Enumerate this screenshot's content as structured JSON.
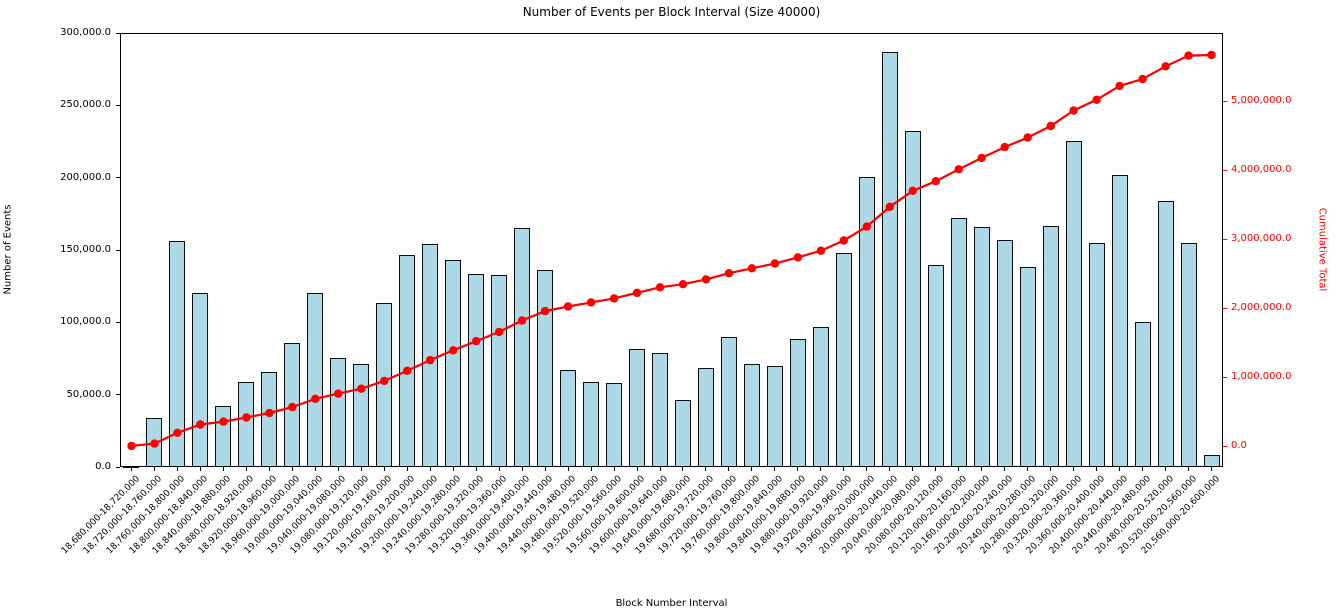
{
  "figure": {
    "title": "Number of Events per Block Interval (Size 40000)",
    "xlabel": "Block Number Interval",
    "ylabel_left": "Number of Events",
    "ylabel_right": "Cumulative Total"
  },
  "chart_data": {
    "type": "bar",
    "title": "Number of Events per Block Interval (Size 40000)",
    "xlabel": "Block Number Interval",
    "ylabel": "Number of Events",
    "ylabel_right": "Cumulative Total",
    "grid": false,
    "legend_position": "none",
    "bar_color": "#add8e6",
    "bar_edge_color": "#0d0d0d",
    "line_color": "#ff0000",
    "categories": [
      "18,680,000-18,720,000",
      "18,720,000-18,760,000",
      "18,760,000-18,800,000",
      "18,800,000-18,840,000",
      "18,840,000-18,880,000",
      "18,880,000-18,920,000",
      "18,920,000-18,960,000",
      "18,960,000-19,000,000",
      "19,000,000-19,040,000",
      "19,040,000-19,080,000",
      "19,080,000-19,120,000",
      "19,120,000-19,160,000",
      "19,160,000-19,200,000",
      "19,200,000-19,240,000",
      "19,240,000-19,280,000",
      "19,280,000-19,320,000",
      "19,320,000-19,360,000",
      "19,360,000-19,400,000",
      "19,400,000-19,440,000",
      "19,440,000-19,480,000",
      "19,480,000-19,520,000",
      "19,520,000-19,560,000",
      "19,560,000-19,600,000",
      "19,600,000-19,640,000",
      "19,640,000-19,680,000",
      "19,680,000-19,720,000",
      "19,720,000-19,760,000",
      "19,760,000-19,800,000",
      "19,800,000-19,840,000",
      "19,840,000-19,880,000",
      "19,880,000-19,920,000",
      "19,920,000-19,960,000",
      "19,960,000-20,000,000",
      "20,000,000-20,040,000",
      "20,040,000-20,080,000",
      "20,080,000-20,120,000",
      "20,120,000-20,160,000",
      "20,160,000-20,200,000",
      "20,200,000-20,240,000",
      "20,240,000-20,280,000",
      "20,280,000-20,320,000",
      "20,320,000-20,360,000",
      "20,360,000-20,400,000",
      "20,400,000-20,440,000",
      "20,440,000-20,480,000",
      "20,480,000-20,520,000",
      "20,520,000-20,560,000",
      "20,560,000-20,600,000"
    ],
    "series": [
      {
        "name": "Number of Events",
        "type": "bar",
        "axis": "left",
        "values": [
          1000,
          34000,
          156500,
          120000,
          42500,
          58500,
          65500,
          86000,
          120000,
          75500,
          71000,
          113500,
          146500,
          154000,
          143000,
          133500,
          132500,
          165500,
          136000,
          67000,
          59000,
          58000,
          81500,
          79000,
          46000,
          68500,
          90000,
          71000,
          70000,
          88500,
          97000,
          148000,
          200500,
          287000,
          232000,
          139500,
          172000,
          166000,
          157000,
          138000,
          166500,
          225500,
          154500,
          202000,
          100500,
          184000,
          154500,
          8500
        ]
      },
      {
        "name": "Cumulative Total",
        "type": "line",
        "axis": "right",
        "values": [
          1000,
          35000,
          191500,
          311500,
          354000,
          412500,
          478000,
          564000,
          684000,
          759500,
          830500,
          944000,
          1090500,
          1244500,
          1387500,
          1521000,
          1653500,
          1819000,
          1955000,
          2022000,
          2081000,
          2139000,
          2220500,
          2299500,
          2345500,
          2414000,
          2504000,
          2575000,
          2645000,
          2733500,
          2830500,
          2978500,
          3179000,
          3466000,
          3698000,
          3837500,
          4009500,
          4175500,
          4332500,
          4470500,
          4637000,
          4862500,
          5017000,
          5219000,
          5319500,
          5503500,
          5658000,
          5666500
        ]
      }
    ],
    "left_axis": {
      "min": 0,
      "max": 300000,
      "tick_values": [
        0,
        50000,
        100000,
        150000,
        200000,
        250000,
        300000
      ],
      "tick_labels": [
        "0.0",
        "50,000.0",
        "100,000.0",
        "150,000.0",
        "200,000.0",
        "250,000.0",
        "300,000.0"
      ]
    },
    "right_axis": {
      "color": "#ff0000",
      "tick_values": [
        0,
        1000000,
        2000000,
        3000000,
        4000000,
        5000000
      ],
      "tick_labels": [
        "0.0",
        "1,000,000.0",
        "2,000,000.0",
        "3,000,000.0",
        "4,000,000.0",
        "5,000,000.0"
      ]
    }
  }
}
